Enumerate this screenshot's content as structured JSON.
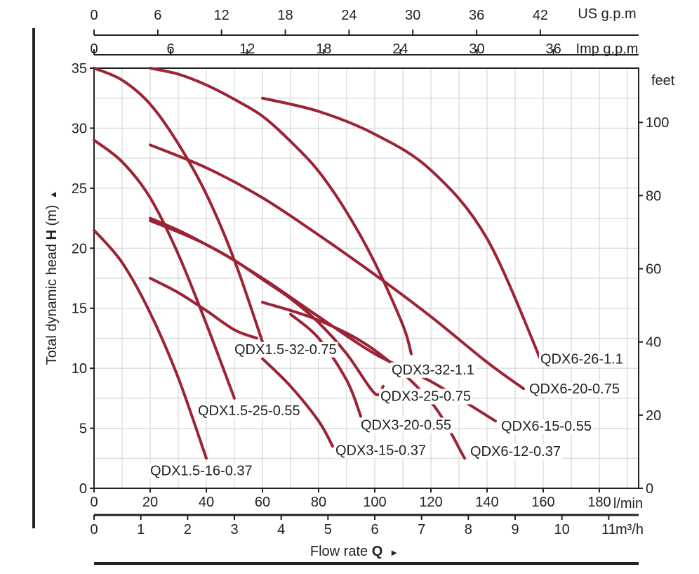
{
  "chart_data": {
    "type": "line",
    "title": "",
    "axes": {
      "left": {
        "label_prefix": "Total dynamic head ",
        "label_bold": "H",
        "label_suffix": " (m)",
        "arrow": "▲",
        "range": [
          0,
          35
        ],
        "ticks": [
          0,
          5,
          10,
          15,
          20,
          25,
          30,
          35
        ]
      },
      "right": {
        "unit": "feet",
        "ticks": [
          0,
          20,
          40,
          60,
          80,
          100
        ]
      },
      "bottom_lmin": {
        "unit": "l/min",
        "range": [
          0,
          180
        ],
        "ticks": [
          0,
          20,
          40,
          60,
          80,
          100,
          120,
          140,
          160,
          180
        ]
      },
      "bottom_m3h": {
        "unit": "m³/h",
        "ticks": [
          0,
          1,
          2,
          3,
          4,
          5,
          6,
          7,
          8,
          9,
          10,
          11
        ]
      },
      "top_us": {
        "unit": "US g.p.m",
        "ticks": [
          0,
          6,
          12,
          18,
          24,
          30,
          36,
          42
        ]
      },
      "top_imp": {
        "unit": "Imp g.p.m",
        "ticks": [
          0,
          6,
          12,
          18,
          24,
          30,
          36
        ]
      },
      "xlabel_prefix": "Flow rate ",
      "xlabel_bold": "Q",
      "xlabel_arrow": "►"
    },
    "grid": true,
    "series": [
      {
        "name": "QDX1.5-16-0.37",
        "x": [
          0,
          10,
          20,
          30,
          40
        ],
        "y": [
          21.5,
          18.8,
          14.6,
          9.2,
          2.5
        ]
      },
      {
        "name": "QDX1.5-25-0.55",
        "x": [
          0,
          10,
          20,
          30,
          40,
          50
        ],
        "y": [
          29,
          27.2,
          24.2,
          19.5,
          13.7,
          7.5
        ]
      },
      {
        "name": "QDX1.5-32-0.75",
        "x": [
          0,
          10,
          20,
          30,
          40,
          50,
          60
        ],
        "y": [
          35,
          34,
          32,
          28.7,
          24.5,
          19,
          12.2
        ]
      },
      {
        "name": "QDX3-15-0.37",
        "x": [
          60,
          70,
          80,
          85
        ],
        "y": [
          10.8,
          8.5,
          5.6,
          3.5
        ]
      },
      {
        "name": "QDX3-20-0.55",
        "x": [
          20,
          30,
          40,
          50,
          58
        ],
        "y": [
          17.5,
          16.3,
          14.8,
          13.2,
          12.5
        ]
      },
      {
        "name": "QDX3-20-0.55 (cont.)",
        "x": [
          70,
          80,
          90,
          95
        ],
        "y": [
          14.5,
          12.5,
          9,
          6
        ]
      },
      {
        "name": "QDX3-25-0.75",
        "x": [
          20,
          30,
          40,
          50,
          60,
          70,
          80,
          90,
          100,
          103
        ],
        "y": [
          22.5,
          21.5,
          20.3,
          19,
          17.4,
          15.8,
          13.8,
          11.2,
          7.9,
          8.5
        ]
      },
      {
        "name": "QDX3-32-1.1",
        "x": [
          20,
          30,
          40,
          50,
          60,
          70,
          80,
          90,
          100,
          110,
          113
        ],
        "y": [
          35,
          34.5,
          33.6,
          32.4,
          31,
          28.9,
          26.4,
          23,
          18.8,
          13.6,
          11.2
        ]
      },
      {
        "name": "QDX6-12-0.37",
        "x": [
          60,
          80,
          100,
          120,
          132
        ],
        "y": [
          15.5,
          14,
          11.5,
          7.2,
          2.5
        ]
      },
      {
        "name": "QDX6-15-0.55",
        "x": [
          20,
          40,
          60,
          80,
          100,
          120,
          143
        ],
        "y": [
          22.3,
          20.3,
          17.5,
          14.3,
          11.2,
          8.9,
          5.6
        ]
      },
      {
        "name": "QDX6-20-0.75",
        "x": [
          20,
          40,
          60,
          80,
          100,
          120,
          140,
          153
        ],
        "y": [
          28.6,
          26.7,
          24.2,
          21.1,
          17.8,
          14.3,
          10.5,
          8.3
        ]
      },
      {
        "name": "QDX6-26-1.1",
        "x": [
          60,
          80,
          100,
          120,
          140,
          160
        ],
        "y": [
          32.5,
          31.4,
          29.5,
          26.5,
          20.8,
          10.2
        ]
      }
    ],
    "labels": [
      {
        "text": "QDX1.5-16-0.37",
        "x": 20,
        "y": 1.5
      },
      {
        "text": "QDX1.5-25-0.55",
        "x": 37,
        "y": 6.5
      },
      {
        "text": "QDX1.5-32-0.75",
        "x": 50,
        "y": 11.6
      },
      {
        "text": "QDX3-15-0.37",
        "x": 86,
        "y": 3.2
      },
      {
        "text": "QDX3-20-0.55",
        "x": 95,
        "y": 5.3
      },
      {
        "text": "QDX3-25-0.75",
        "x": 102,
        "y": 7.7
      },
      {
        "text": "QDX3-32-1.1",
        "x": 106,
        "y": 9.9
      },
      {
        "text": "QDX6-12-0.37",
        "x": 134,
        "y": 3.1
      },
      {
        "text": "QDX6-15-0.55",
        "x": 145,
        "y": 5.2
      },
      {
        "text": "QDX6-20-0.75",
        "x": 155,
        "y": 8.3
      },
      {
        "text": "QDX6-26-1.1",
        "x": 159,
        "y": 10.8
      }
    ],
    "colors": {
      "curve": "#9b2335",
      "axis": "#222222",
      "grid": "#cfcfcf"
    }
  }
}
